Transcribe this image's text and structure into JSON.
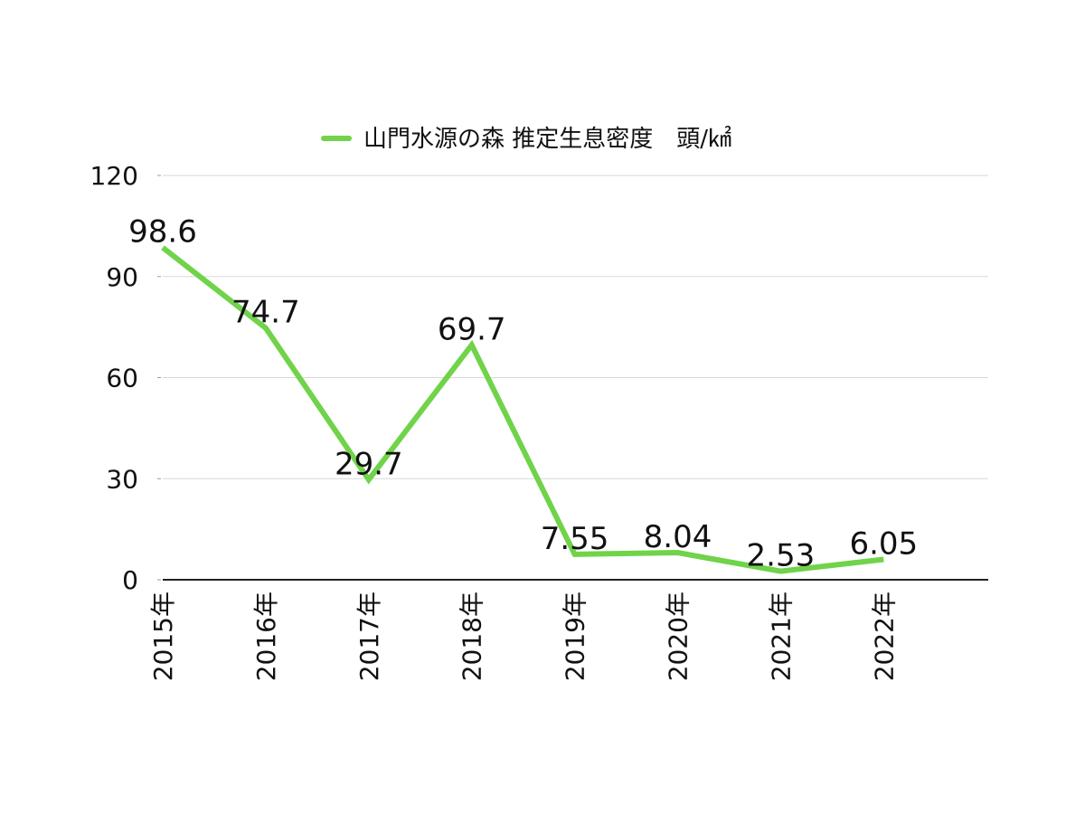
{
  "chart_data": {
    "type": "line",
    "categories": [
      "2015年",
      "2016年",
      "2017年",
      "2018年",
      "2019年",
      "2020年",
      "2021年",
      "2022年"
    ],
    "series": [
      {
        "name": "山門水源の森 推定生息密度　頭/㎢",
        "values": [
          98.6,
          74.7,
          29.7,
          69.7,
          7.55,
          8.04,
          2.53,
          6.05
        ],
        "data_labels": [
          "98.6",
          "74.7",
          "29.7",
          "69.7",
          "7.55",
          "8.04",
          "2.53",
          "6.05"
        ],
        "color": "#70d34a"
      }
    ],
    "ylim": [
      0,
      120
    ],
    "yticks": [
      0,
      30,
      60,
      90,
      120
    ],
    "title": "",
    "xlabel": "",
    "ylabel": "",
    "grid": true,
    "legend_position": "top-center",
    "colors": {
      "gridline": "#d9d9d9",
      "axis": "#222222",
      "text": "#111111"
    }
  }
}
